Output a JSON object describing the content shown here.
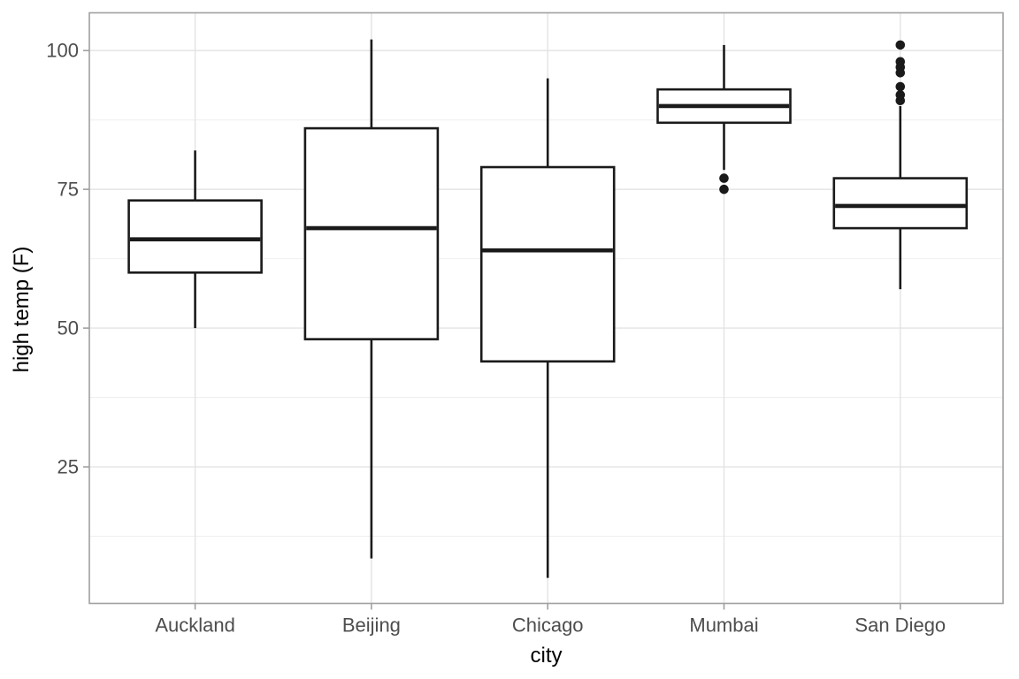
{
  "chart_data": {
    "type": "boxplot",
    "title": "",
    "xlabel": "city",
    "ylabel": "high temp (F)",
    "categories": [
      "Auckland",
      "Beijing",
      "Chicago",
      "Mumbai",
      "San Diego"
    ],
    "series": [
      {
        "name": "Auckland",
        "whisker_low": 50,
        "q1": 60,
        "median": 66,
        "q3": 73,
        "whisker_high": 82,
        "outliers": []
      },
      {
        "name": "Beijing",
        "whisker_low": 8.5,
        "q1": 48,
        "median": 68,
        "q3": 86,
        "whisker_high": 102,
        "outliers": []
      },
      {
        "name": "Chicago",
        "whisker_low": 5,
        "q1": 44,
        "median": 64,
        "q3": 79,
        "whisker_high": 95,
        "outliers": []
      },
      {
        "name": "Mumbai",
        "whisker_low": 78.5,
        "q1": 87,
        "median": 90,
        "q3": 93,
        "whisker_high": 101,
        "outliers": [
          77,
          75
        ]
      },
      {
        "name": "San Diego",
        "whisker_low": 57,
        "q1": 68,
        "median": 72,
        "q3": 77,
        "whisker_high": 90,
        "outliers": [
          101,
          98,
          97,
          96,
          93.5,
          92,
          91
        ]
      }
    ],
    "y_axis": {
      "ticks": [
        25,
        50,
        75,
        100
      ],
      "minor_ticks": [
        12.5,
        37.5,
        62.5,
        87.5
      ],
      "range": [
        0.4,
        106.8
      ],
      "grid": true
    },
    "x_axis": {
      "grid_at_categories": true
    },
    "legend": null,
    "colors": {
      "background": "#ffffff",
      "panel_background": "#ffffff",
      "panel_border": "#a0a0a0",
      "grid_major": "#e3e3e3",
      "grid_minor": "#f0f0f0",
      "tick_mark": "#a0a0a0",
      "tick_label": "#4d4d4d",
      "axis_title": "#000000",
      "box_stroke": "#1a1a1a",
      "box_fill": "#ffffff"
    }
  }
}
